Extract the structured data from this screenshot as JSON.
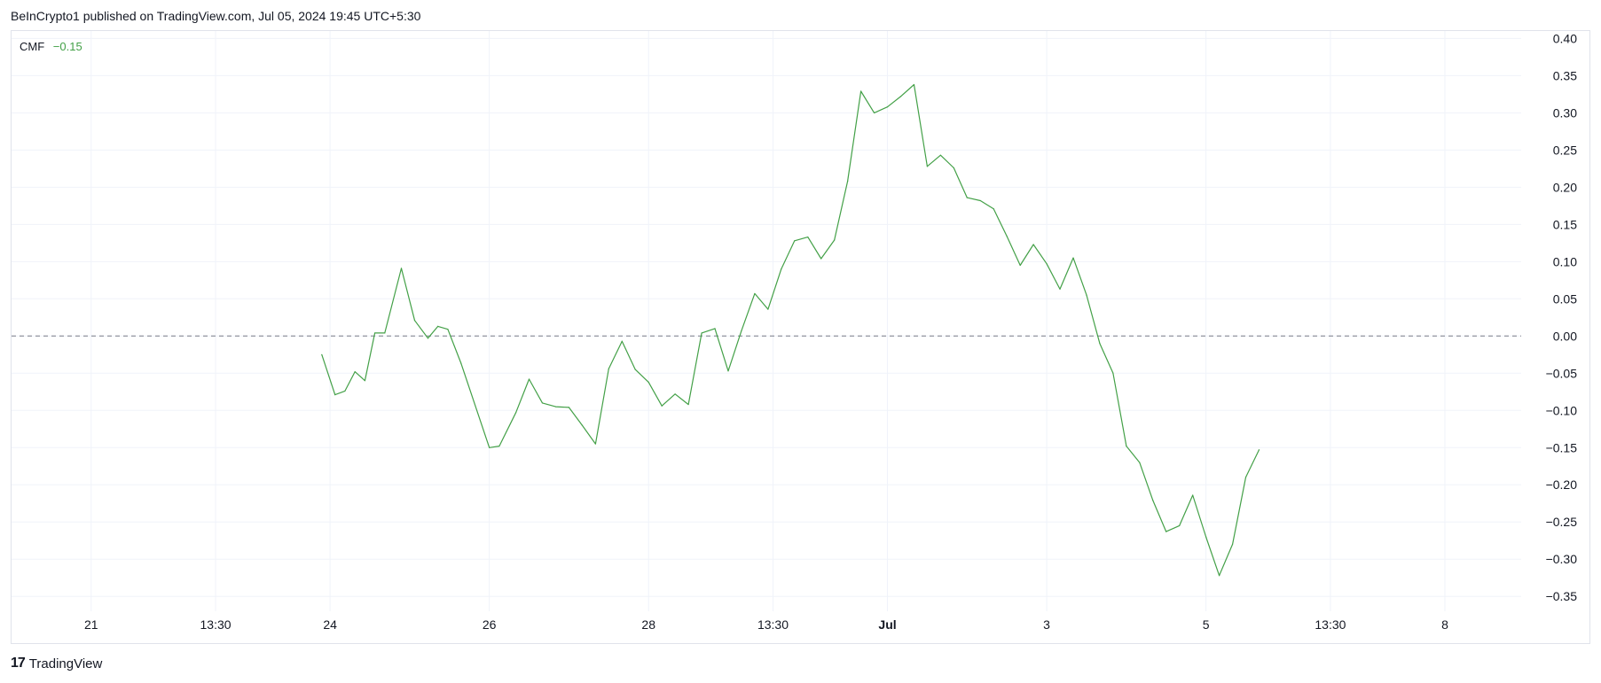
{
  "header": {
    "published_text": "BeInCrypto1 published on TradingView.com, Jul 05, 2024 19:45 UTC+5:30"
  },
  "legend": {
    "name": "CMF",
    "value": "−0.15",
    "value_color": "#43a047"
  },
  "footer": {
    "brand_mark": "17",
    "brand": "TradingView"
  },
  "colors": {
    "line": "#43a047",
    "grid": "#f0f3fa",
    "zero_line": "#787b86"
  },
  "chart_data": {
    "type": "line",
    "title": "",
    "ylabel": "",
    "ylim": [
      -0.37,
      0.41
    ],
    "y_ticks": [
      "0.40",
      "0.35",
      "0.30",
      "0.25",
      "0.20",
      "0.15",
      "0.10",
      "0.05",
      "0.00",
      "−0.05",
      "−0.10",
      "−0.15",
      "−0.20",
      "−0.25",
      "−0.30",
      "−0.35"
    ],
    "y_tick_values": [
      0.4,
      0.35,
      0.3,
      0.25,
      0.2,
      0.15,
      0.1,
      0.05,
      0.0,
      -0.05,
      -0.1,
      -0.15,
      -0.2,
      -0.25,
      -0.3,
      -0.35
    ],
    "x_range": [
      "2024-06-20T00:00",
      "2024-07-08T23:00"
    ],
    "x_ticks": [
      {
        "label": "21",
        "x": "2024-06-21T00:00",
        "bold": false
      },
      {
        "label": "13:30",
        "x": "2024-06-22T13:30",
        "bold": false
      },
      {
        "label": "24",
        "x": "2024-06-24T00:00",
        "bold": false
      },
      {
        "label": "26",
        "x": "2024-06-26T00:00",
        "bold": false
      },
      {
        "label": "28",
        "x": "2024-06-28T00:00",
        "bold": false
      },
      {
        "label": "13:30",
        "x": "2024-06-29T13:30",
        "bold": false
      },
      {
        "label": "Jul",
        "x": "2024-07-01T00:00",
        "bold": true
      },
      {
        "label": "3",
        "x": "2024-07-03T00:00",
        "bold": false
      },
      {
        "label": "5",
        "x": "2024-07-05T00:00",
        "bold": false
      },
      {
        "label": "13:30",
        "x": "2024-07-06T13:30",
        "bold": false
      },
      {
        "label": "8",
        "x": "2024-07-08T00:00",
        "bold": false
      }
    ],
    "zero_line": 0,
    "series": [
      {
        "color": "#43a047",
        "points": [
          [
            "2024-06-23T21:30",
            -0.025
          ],
          [
            "2024-06-24T01:30",
            -0.079
          ],
          [
            "2024-06-24T04:30",
            -0.074
          ],
          [
            "2024-06-24T07:30",
            -0.048
          ],
          [
            "2024-06-24T10:30",
            -0.06
          ],
          [
            "2024-06-24T13:30",
            0.004
          ],
          [
            "2024-06-24T16:30",
            0.004
          ],
          [
            "2024-06-24T21:30",
            0.091
          ],
          [
            "2024-06-25T01:30",
            0.021
          ],
          [
            "2024-06-25T05:30",
            -0.003
          ],
          [
            "2024-06-25T08:30",
            0.013
          ],
          [
            "2024-06-25T11:30",
            0.009
          ],
          [
            "2024-06-25T15:30",
            -0.037
          ],
          [
            "2024-06-26T00:00",
            -0.15
          ],
          [
            "2024-06-26T03:00",
            -0.148
          ],
          [
            "2024-06-26T08:00",
            -0.103
          ],
          [
            "2024-06-26T12:00",
            -0.058
          ],
          [
            "2024-06-26T16:00",
            -0.09
          ],
          [
            "2024-06-26T20:00",
            -0.095
          ],
          [
            "2024-06-27T00:00",
            -0.096
          ],
          [
            "2024-06-27T04:00",
            -0.12
          ],
          [
            "2024-06-27T08:00",
            -0.145
          ],
          [
            "2024-06-27T12:00",
            -0.044
          ],
          [
            "2024-06-27T16:00",
            -0.007
          ],
          [
            "2024-06-27T20:00",
            -0.045
          ],
          [
            "2024-06-28T00:00",
            -0.062
          ],
          [
            "2024-06-28T04:00",
            -0.094
          ],
          [
            "2024-06-28T08:00",
            -0.078
          ],
          [
            "2024-06-28T12:00",
            -0.092
          ],
          [
            "2024-06-28T16:00",
            0.004
          ],
          [
            "2024-06-28T20:00",
            0.01
          ],
          [
            "2024-06-29T00:00",
            -0.047
          ],
          [
            "2024-06-29T04:00",
            0.007
          ],
          [
            "2024-06-29T08:00",
            0.057
          ],
          [
            "2024-06-29T12:00",
            0.036
          ],
          [
            "2024-06-29T16:00",
            0.09
          ],
          [
            "2024-06-29T20:00",
            0.128
          ],
          [
            "2024-06-30T00:00",
            0.133
          ],
          [
            "2024-06-30T04:00",
            0.104
          ],
          [
            "2024-06-30T08:00",
            0.129
          ],
          [
            "2024-06-30T12:00",
            0.208
          ],
          [
            "2024-06-30T16:00",
            0.329
          ],
          [
            "2024-06-30T20:00",
            0.3
          ],
          [
            "2024-07-01T00:00",
            0.308
          ],
          [
            "2024-07-01T04:00",
            0.322
          ],
          [
            "2024-07-01T08:00",
            0.338
          ],
          [
            "2024-07-01T12:00",
            0.228
          ],
          [
            "2024-07-01T16:00",
            0.243
          ],
          [
            "2024-07-01T20:00",
            0.226
          ],
          [
            "2024-07-02T00:00",
            0.186
          ],
          [
            "2024-07-02T04:00",
            0.182
          ],
          [
            "2024-07-02T08:00",
            0.171
          ],
          [
            "2024-07-02T12:00",
            0.134
          ],
          [
            "2024-07-02T16:00",
            0.095
          ],
          [
            "2024-07-02T20:00",
            0.123
          ],
          [
            "2024-07-03T00:00",
            0.097
          ],
          [
            "2024-07-03T04:00",
            0.063
          ],
          [
            "2024-07-03T08:00",
            0.105
          ],
          [
            "2024-07-03T12:00",
            0.055
          ],
          [
            "2024-07-03T16:00",
            -0.01
          ],
          [
            "2024-07-03T20:00",
            -0.05
          ],
          [
            "2024-07-04T00:00",
            -0.148
          ],
          [
            "2024-07-04T04:00",
            -0.17
          ],
          [
            "2024-07-04T08:00",
            -0.221
          ],
          [
            "2024-07-04T12:00",
            -0.263
          ],
          [
            "2024-07-04T16:00",
            -0.255
          ],
          [
            "2024-07-04T20:00",
            -0.214
          ],
          [
            "2024-07-05T00:00",
            -0.27
          ],
          [
            "2024-07-05T04:00",
            -0.322
          ],
          [
            "2024-07-05T08:00",
            -0.28
          ],
          [
            "2024-07-05T12:00",
            -0.19
          ],
          [
            "2024-07-05T16:00",
            -0.153
          ]
        ]
      }
    ]
  }
}
